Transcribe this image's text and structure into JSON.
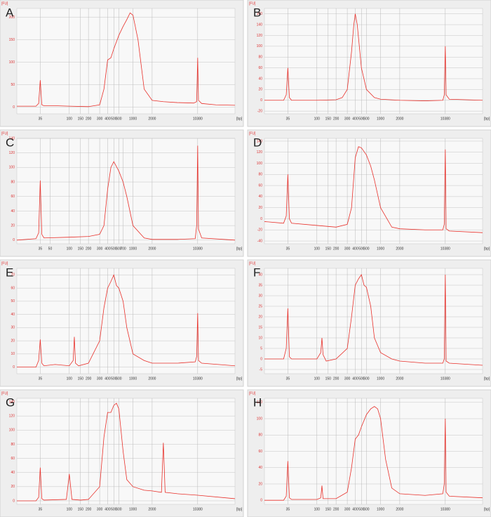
{
  "chart_data": [
    {
      "type": "line",
      "title": "A",
      "y_label": "[FU]",
      "x_label": "[bp]",
      "xlog": true,
      "grid": true,
      "xlim": [
        15,
        40000
      ],
      "ylim": [
        -15,
        220
      ],
      "xticks": [
        35,
        100,
        150,
        200,
        300,
        400,
        500,
        600,
        1000,
        2000,
        10380
      ],
      "yticks": [
        0,
        50,
        100,
        150,
        200
      ],
      "series": [
        {
          "color": "#e8302a",
          "x": [
            15,
            30,
            33,
            35,
            37,
            40,
            60,
            100,
            200,
            300,
            350,
            400,
            450,
            500,
            600,
            700,
            800,
            900,
            1000,
            1200,
            1500,
            2000,
            3000,
            5000,
            9000,
            10000,
            10380,
            10700,
            12000,
            20000,
            40000
          ],
          "values": [
            2,
            2,
            8,
            60,
            5,
            3,
            3,
            2,
            1,
            5,
            40,
            105,
            110,
            130,
            160,
            180,
            195,
            210,
            205,
            150,
            40,
            15,
            12,
            10,
            9,
            12,
            110,
            15,
            8,
            5,
            4
          ]
        }
      ]
    },
    {
      "type": "line",
      "title": "B",
      "y_label": "[FU]",
      "x_label": "[bp]",
      "xlog": true,
      "grid": true,
      "xlim": [
        15,
        40000
      ],
      "ylim": [
        -25,
        170
      ],
      "xticks": [
        35,
        100,
        150,
        200,
        300,
        400,
        500,
        600,
        1000,
        2000,
        10380
      ],
      "yticks": [
        -20,
        0,
        20,
        40,
        60,
        80,
        100,
        120,
        140,
        160
      ],
      "series": [
        {
          "color": "#e8302a",
          "x": [
            15,
            30,
            33,
            35,
            37,
            40,
            100,
            200,
            250,
            300,
            350,
            380,
            400,
            430,
            500,
            600,
            800,
            1000,
            2000,
            5000,
            9500,
            10000,
            10380,
            10700,
            12000,
            40000
          ],
          "values": [
            0,
            0,
            10,
            60,
            5,
            0,
            0,
            1,
            5,
            20,
            90,
            140,
            160,
            140,
            60,
            20,
            5,
            2,
            0,
            -1,
            0,
            10,
            100,
            10,
            2,
            0
          ]
        }
      ]
    },
    {
      "type": "line",
      "title": "C",
      "y_label": "[FU]",
      "x_label": "[bp]",
      "xlog": true,
      "grid": true,
      "xlim": [
        15,
        40000
      ],
      "ylim": [
        -5,
        140
      ],
      "xticks": [
        35,
        50,
        100,
        150,
        200,
        300,
        400,
        500,
        600,
        700,
        1000,
        2000,
        10380
      ],
      "yticks": [
        0,
        20,
        40,
        60,
        80,
        100,
        120,
        140
      ],
      "series": [
        {
          "color": "#e8302a",
          "x": [
            15,
            30,
            33,
            35,
            37,
            40,
            100,
            200,
            300,
            350,
            400,
            450,
            500,
            600,
            700,
            800,
            1000,
            1500,
            2000,
            5000,
            9500,
            10000,
            10380,
            10700,
            12000,
            40000
          ],
          "values": [
            0,
            2,
            10,
            82,
            8,
            3,
            4,
            5,
            8,
            20,
            70,
            100,
            108,
            95,
            80,
            60,
            20,
            3,
            1,
            1,
            2,
            20,
            130,
            15,
            3,
            0
          ]
        }
      ]
    },
    {
      "type": "line",
      "title": "D",
      "y_label": "[FU]",
      "x_label": "[bp]",
      "xlog": true,
      "grid": true,
      "xlim": [
        15,
        40000
      ],
      "ylim": [
        -45,
        145
      ],
      "xticks": [
        35,
        100,
        150,
        200,
        300,
        400,
        500,
        600,
        1000,
        2000,
        10380
      ],
      "yticks": [
        -40,
        -20,
        0,
        20,
        40,
        60,
        80,
        100,
        120,
        140
      ],
      "series": [
        {
          "color": "#e8302a",
          "x": [
            15,
            30,
            33,
            35,
            37,
            40,
            100,
            200,
            300,
            350,
            400,
            450,
            500,
            600,
            700,
            800,
            1000,
            1500,
            2000,
            5000,
            9500,
            10000,
            10380,
            10700,
            12000,
            40000
          ],
          "values": [
            -5,
            -8,
            5,
            80,
            0,
            -8,
            -12,
            -15,
            -10,
            20,
            110,
            130,
            128,
            115,
            95,
            70,
            20,
            -15,
            -18,
            -20,
            -20,
            -10,
            125,
            -18,
            -22,
            -25
          ]
        }
      ]
    },
    {
      "type": "line",
      "title": "E",
      "y_label": "[FU]",
      "x_label": "[bp]",
      "xlog": true,
      "grid": true,
      "xlim": [
        15,
        40000
      ],
      "ylim": [
        -5,
        75
      ],
      "xticks": [
        35,
        100,
        150,
        200,
        300,
        400,
        500,
        600,
        1000,
        2000,
        10380
      ],
      "yticks": [
        0,
        10,
        20,
        30,
        40,
        50,
        60,
        70
      ],
      "series": [
        {
          "color": "#e8302a",
          "x": [
            15,
            30,
            33,
            35,
            37,
            40,
            60,
            100,
            115,
            120,
            125,
            140,
            200,
            300,
            350,
            400,
            450,
            500,
            550,
            600,
            700,
            800,
            1000,
            1500,
            2000,
            5000,
            9500,
            10000,
            10380,
            10700,
            12000,
            40000
          ],
          "values": [
            0,
            0,
            5,
            21,
            3,
            1,
            2,
            1,
            5,
            23,
            3,
            1,
            3,
            20,
            45,
            60,
            65,
            70,
            62,
            60,
            50,
            30,
            10,
            5,
            3,
            3,
            4,
            8,
            41,
            5,
            3,
            1
          ]
        }
      ]
    },
    {
      "type": "line",
      "title": "F",
      "y_label": "[FU]",
      "x_label": "[bp]",
      "xlog": true,
      "grid": true,
      "xlim": [
        15,
        40000
      ],
      "ylim": [
        -7,
        43
      ],
      "xticks": [
        35,
        100,
        150,
        200,
        300,
        400,
        500,
        600,
        1000,
        2000,
        10380
      ],
      "yticks": [
        -5,
        0,
        5,
        10,
        15,
        20,
        25,
        30,
        35,
        40
      ],
      "series": [
        {
          "color": "#e8302a",
          "x": [
            15,
            30,
            33,
            35,
            37,
            40,
            60,
            100,
            115,
            120,
            125,
            140,
            200,
            300,
            350,
            400,
            450,
            500,
            550,
            600,
            700,
            800,
            1000,
            1500,
            2000,
            5000,
            9500,
            10000,
            10380,
            10700,
            12000,
            40000
          ],
          "values": [
            0,
            0,
            5,
            24,
            1,
            0,
            0,
            0,
            3,
            10,
            2,
            -1,
            0,
            5,
            20,
            35,
            38,
            40,
            35,
            34,
            25,
            10,
            3,
            0,
            -1,
            -2,
            -2,
            0,
            40,
            -1,
            -2,
            -3
          ]
        }
      ]
    },
    {
      "type": "line",
      "title": "G",
      "y_label": "[FU]",
      "x_label": "[bp]",
      "xlog": true,
      "grid": true,
      "xlim": [
        15,
        40000
      ],
      "ylim": [
        -5,
        145
      ],
      "xticks": [
        35,
        100,
        150,
        200,
        300,
        400,
        500,
        600,
        1000,
        2000,
        10380
      ],
      "yticks": [
        0,
        20,
        40,
        60,
        80,
        100,
        120,
        140
      ],
      "series": [
        {
          "color": "#e8302a",
          "x": [
            15,
            30,
            33,
            35,
            37,
            40,
            90,
            100,
            110,
            150,
            200,
            300,
            350,
            400,
            450,
            500,
            550,
            600,
            700,
            800,
            1000,
            1500,
            2000,
            2800,
            3000,
            3200,
            5000,
            10000,
            40000
          ],
          "values": [
            0,
            0,
            5,
            47,
            3,
            1,
            2,
            38,
            2,
            1,
            2,
            20,
            90,
            125,
            125,
            135,
            138,
            130,
            70,
            30,
            20,
            15,
            14,
            12,
            82,
            12,
            10,
            8,
            3
          ]
        }
      ]
    },
    {
      "type": "line",
      "title": "H",
      "y_label": "[FU]",
      "x_label": "[bp]",
      "xlog": true,
      "grid": true,
      "xlim": [
        15,
        40000
      ],
      "ylim": [
        -5,
        125
      ],
      "xticks": [
        35,
        100,
        150,
        200,
        300,
        400,
        500,
        600,
        1000,
        2000,
        10380
      ],
      "yticks": [
        0,
        20,
        40,
        60,
        80,
        100,
        120
      ],
      "series": [
        {
          "color": "#e8302a",
          "x": [
            15,
            30,
            33,
            35,
            37,
            40,
            100,
            115,
            120,
            125,
            200,
            300,
            350,
            400,
            450,
            500,
            600,
            700,
            800,
            900,
            1000,
            1200,
            1500,
            2000,
            5000,
            9500,
            10000,
            10380,
            10700,
            12000,
            40000
          ],
          "values": [
            0,
            0,
            5,
            48,
            3,
            1,
            1,
            3,
            18,
            2,
            2,
            10,
            40,
            75,
            80,
            90,
            105,
            112,
            115,
            112,
            100,
            50,
            15,
            8,
            6,
            8,
            20,
            100,
            10,
            5,
            3
          ]
        }
      ]
    }
  ]
}
